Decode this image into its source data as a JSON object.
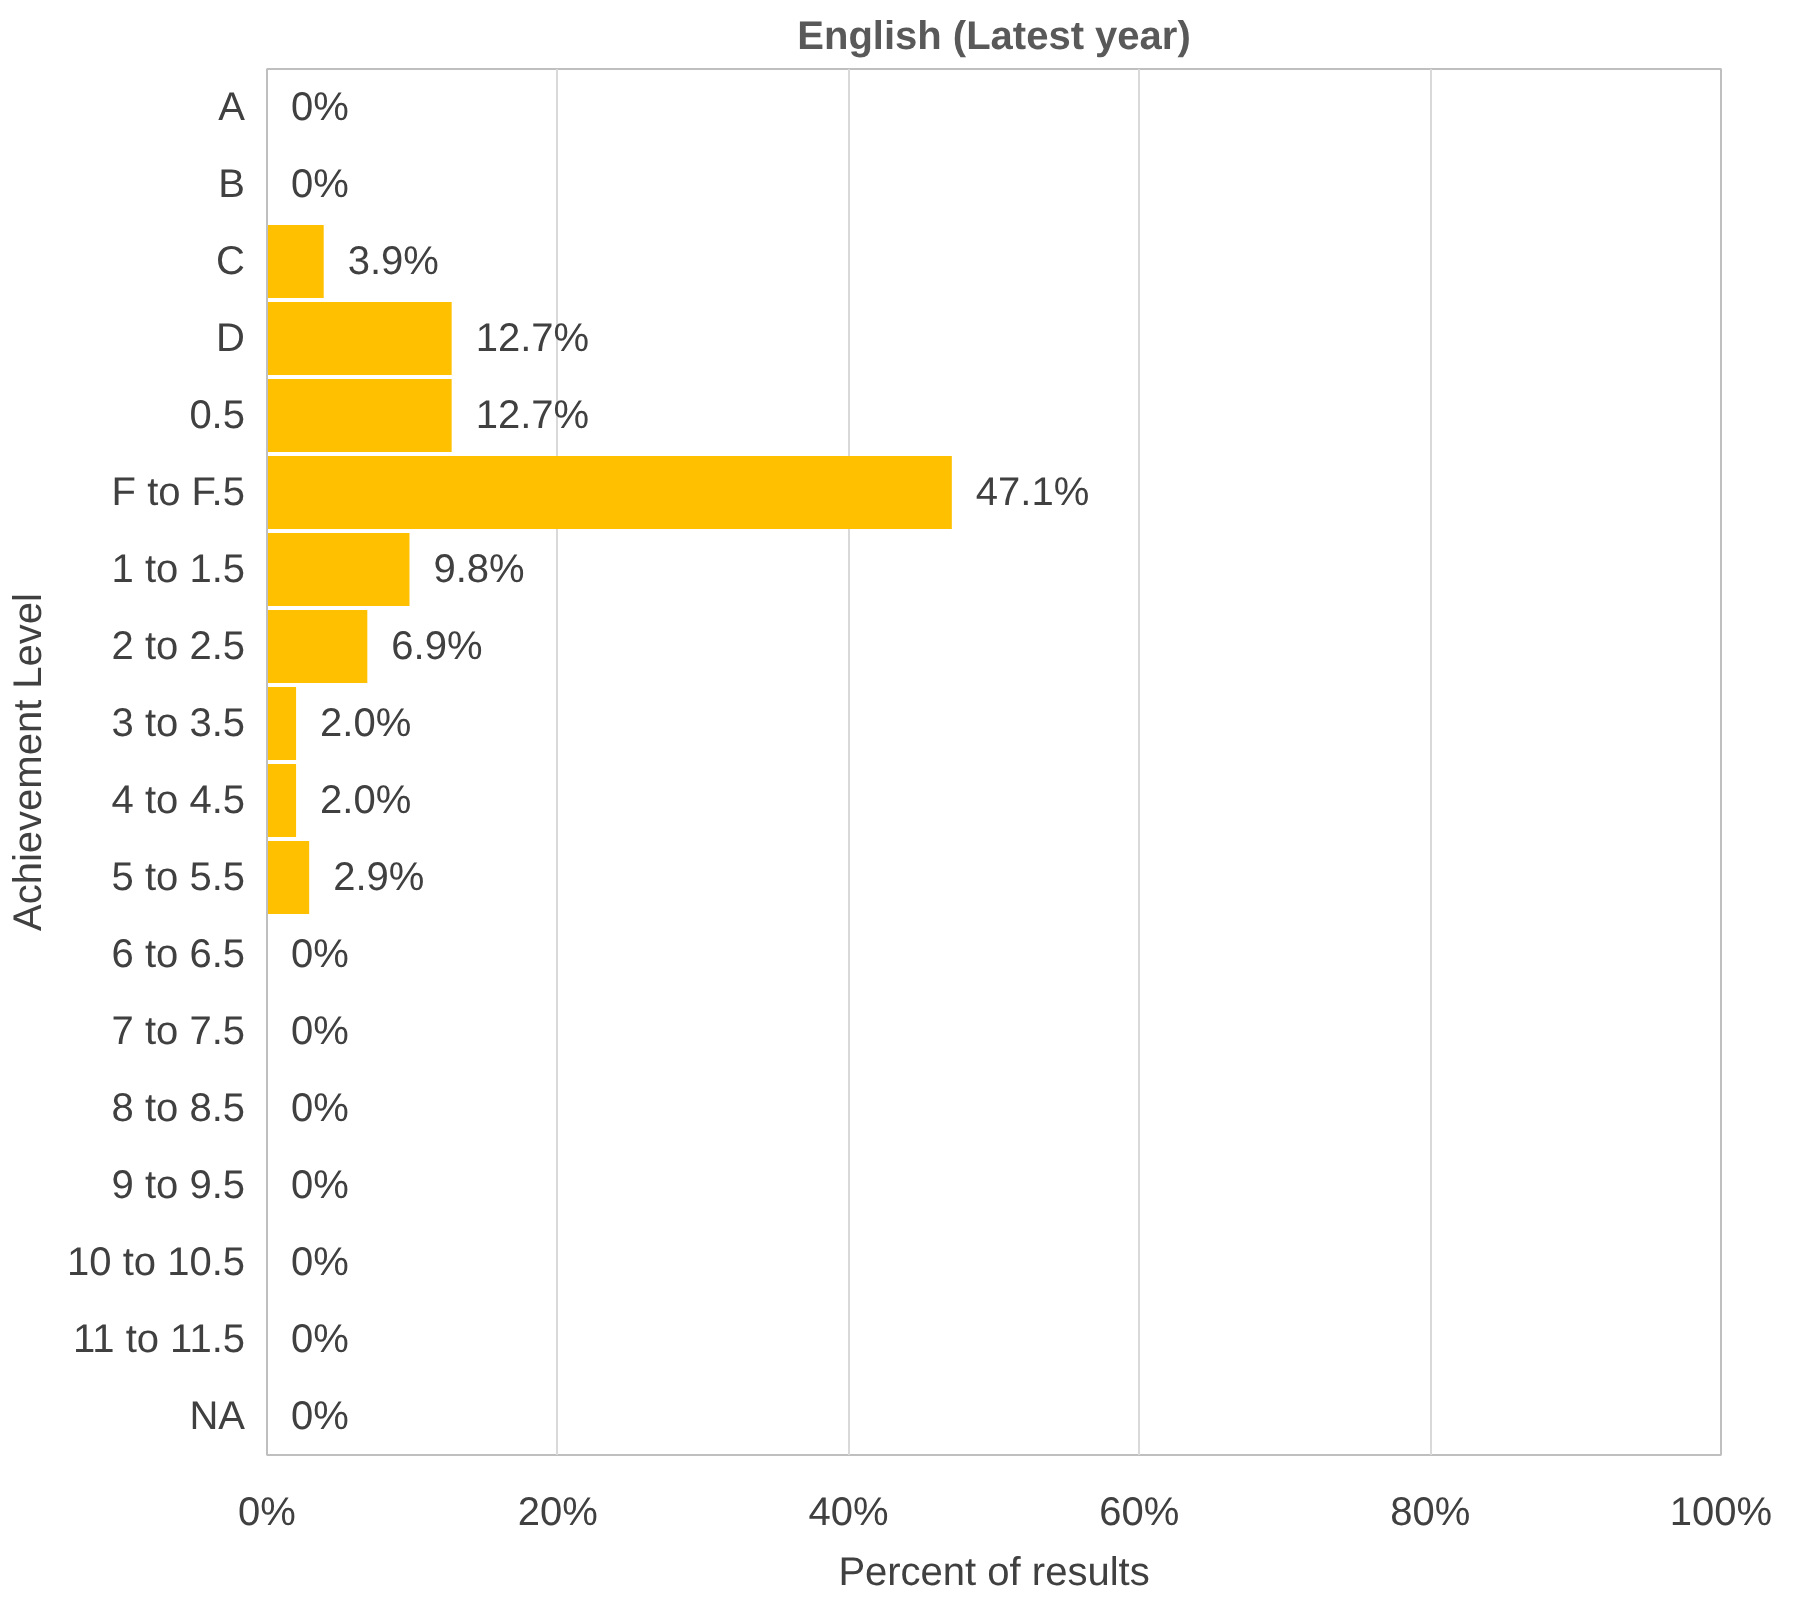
{
  "chart_data": {
    "type": "bar",
    "orientation": "horizontal",
    "title": "English (Latest year)",
    "xlabel": "Percent of results",
    "ylabel": "Achievement Level",
    "categories": [
      "A",
      "B",
      "C",
      "D",
      "0.5",
      "F to F.5",
      "1 to 1.5",
      "2 to 2.5",
      "3 to 3.5",
      "4 to 4.5",
      "5 to 5.5",
      "6 to 6.5",
      "7 to 7.5",
      "8 to 8.5",
      "9 to 9.5",
      "10 to 10.5",
      "11 to 11.5",
      "NA"
    ],
    "values": [
      0,
      0,
      3.9,
      12.7,
      12.7,
      47.1,
      9.8,
      6.9,
      2.0,
      2.0,
      2.9,
      0,
      0,
      0,
      0,
      0,
      0,
      0
    ],
    "value_labels": [
      "0%",
      "0%",
      "3.9%",
      "12.7%",
      "12.7%",
      "47.1%",
      "9.8%",
      "6.9%",
      "2.0%",
      "2.0%",
      "2.9%",
      "0%",
      "0%",
      "0%",
      "0%",
      "0%",
      "0%",
      "0%"
    ],
    "color": "#ffc000",
    "xlim": [
      0,
      100
    ],
    "xticks": [
      {
        "value": 0,
        "label": "0%"
      },
      {
        "value": 20,
        "label": "20%"
      },
      {
        "value": 40,
        "label": "40%"
      },
      {
        "value": 60,
        "label": "60%"
      },
      {
        "value": 80,
        "label": "80%"
      },
      {
        "value": 100,
        "label": "100%"
      }
    ],
    "grid": "x"
  }
}
